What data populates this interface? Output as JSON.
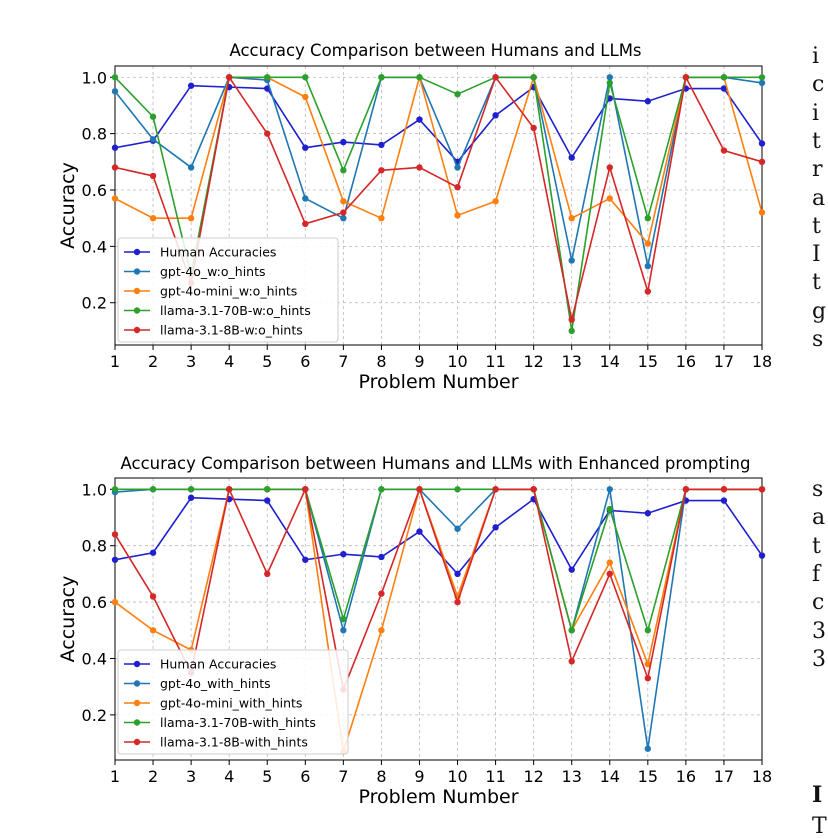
{
  "chart_data": [
    {
      "type": "line",
      "title": "Accuracy Comparison between Humans and LLMs",
      "xlabel": "Problem Number",
      "ylabel": "Accuracy",
      "x": [
        1,
        2,
        3,
        4,
        5,
        6,
        7,
        8,
        9,
        10,
        11,
        12,
        13,
        14,
        15,
        16,
        17,
        18
      ],
      "xlim": [
        1,
        18
      ],
      "ylim": [
        0.05,
        1.04
      ],
      "yticks": [
        "0.2",
        "0.4",
        "0.6",
        "0.8",
        "1.0"
      ],
      "grid": true,
      "legend_position": "lower-left",
      "series": [
        {
          "name": "Human Accuracies",
          "color": "#1f1fcf",
          "values": [
            0.75,
            0.775,
            0.97,
            0.965,
            0.96,
            0.75,
            0.77,
            0.76,
            0.85,
            0.7,
            0.865,
            0.965,
            0.715,
            0.925,
            0.915,
            0.96,
            0.96,
            0.765
          ]
        },
        {
          "name": "gpt-4o_w:o_hints",
          "color": "#1f77b4",
          "values": [
            0.95,
            0.78,
            0.68,
            1.0,
            0.99,
            0.57,
            0.5,
            1.0,
            1.0,
            0.68,
            1.0,
            1.0,
            0.35,
            1.0,
            0.33,
            1.0,
            1.0,
            0.98
          ]
        },
        {
          "name": "gpt-4o-mini_w:o_hints",
          "color": "#ff7f0e",
          "values": [
            0.57,
            0.5,
            0.5,
            1.0,
            1.0,
            0.93,
            0.56,
            0.5,
            1.0,
            0.51,
            0.56,
            1.0,
            0.5,
            0.57,
            0.41,
            1.0,
            1.0,
            0.52
          ]
        },
        {
          "name": "llama-3.1-70B-w:o_hints",
          "color": "#2ca02c",
          "values": [
            1.0,
            0.86,
            0.3,
            1.0,
            1.0,
            1.0,
            0.67,
            1.0,
            1.0,
            0.94,
            1.0,
            1.0,
            0.1,
            0.98,
            0.5,
            1.0,
            1.0,
            1.0
          ]
        },
        {
          "name": "llama-3.1-8B-w:o_hints",
          "color": "#d62728",
          "values": [
            0.68,
            0.65,
            0.27,
            1.0,
            0.8,
            0.48,
            0.52,
            0.67,
            0.68,
            0.61,
            1.0,
            0.82,
            0.14,
            0.68,
            0.24,
            1.0,
            0.74,
            0.7
          ]
        }
      ]
    },
    {
      "type": "line",
      "title": "Accuracy Comparison between Humans and LLMs with Enhanced prompting",
      "xlabel": "Problem Number",
      "ylabel": "Accuracy",
      "x": [
        1,
        2,
        3,
        4,
        5,
        6,
        7,
        8,
        9,
        10,
        11,
        12,
        13,
        14,
        15,
        16,
        17,
        18
      ],
      "xlim": [
        1,
        18
      ],
      "ylim": [
        0.04,
        1.04
      ],
      "yticks": [
        "0.2",
        "0.4",
        "0.6",
        "0.8",
        "1.0"
      ],
      "grid": true,
      "legend_position": "lower-left",
      "series": [
        {
          "name": "Human Accuracies",
          "color": "#1f1fcf",
          "values": [
            0.75,
            0.775,
            0.97,
            0.965,
            0.96,
            0.75,
            0.77,
            0.76,
            0.85,
            0.7,
            0.865,
            0.965,
            0.715,
            0.925,
            0.915,
            0.96,
            0.96,
            0.765
          ]
        },
        {
          "name": "gpt-4o_with_hints",
          "color": "#1f77b4",
          "values": [
            0.99,
            1.0,
            1.0,
            1.0,
            1.0,
            1.0,
            0.5,
            1.0,
            1.0,
            0.86,
            1.0,
            1.0,
            0.5,
            1.0,
            0.08,
            1.0,
            1.0,
            1.0
          ]
        },
        {
          "name": "gpt-4o-mini_with_hints",
          "color": "#ff7f0e",
          "values": [
            0.6,
            0.5,
            0.43,
            1.0,
            1.0,
            1.0,
            0.07,
            0.5,
            1.0,
            0.62,
            1.0,
            1.0,
            0.5,
            0.74,
            0.38,
            1.0,
            1.0,
            1.0
          ]
        },
        {
          "name": "llama-3.1-70B-with_hints",
          "color": "#2ca02c",
          "values": [
            1.0,
            1.0,
            1.0,
            1.0,
            1.0,
            1.0,
            0.54,
            1.0,
            1.0,
            1.0,
            1.0,
            1.0,
            0.5,
            0.93,
            0.5,
            1.0,
            1.0,
            1.0
          ]
        },
        {
          "name": "llama-3.1-8B-with_hints",
          "color": "#d62728",
          "values": [
            0.84,
            0.62,
            0.35,
            1.0,
            0.7,
            1.0,
            0.29,
            0.63,
            1.0,
            0.6,
            1.0,
            1.0,
            0.39,
            0.7,
            0.33,
            1.0,
            1.0,
            1.0
          ]
        }
      ]
    }
  ],
  "side_text": {
    "column_a": [
      "i",
      "c",
      "i",
      "t",
      "r",
      "a",
      "t",
      "I",
      "t",
      "g",
      "s"
    ],
    "column_b": [
      "s",
      "a",
      "t",
      "f",
      "c",
      "3",
      "3"
    ],
    "heading_fragment": "I",
    "bottom_fragment": "T"
  }
}
